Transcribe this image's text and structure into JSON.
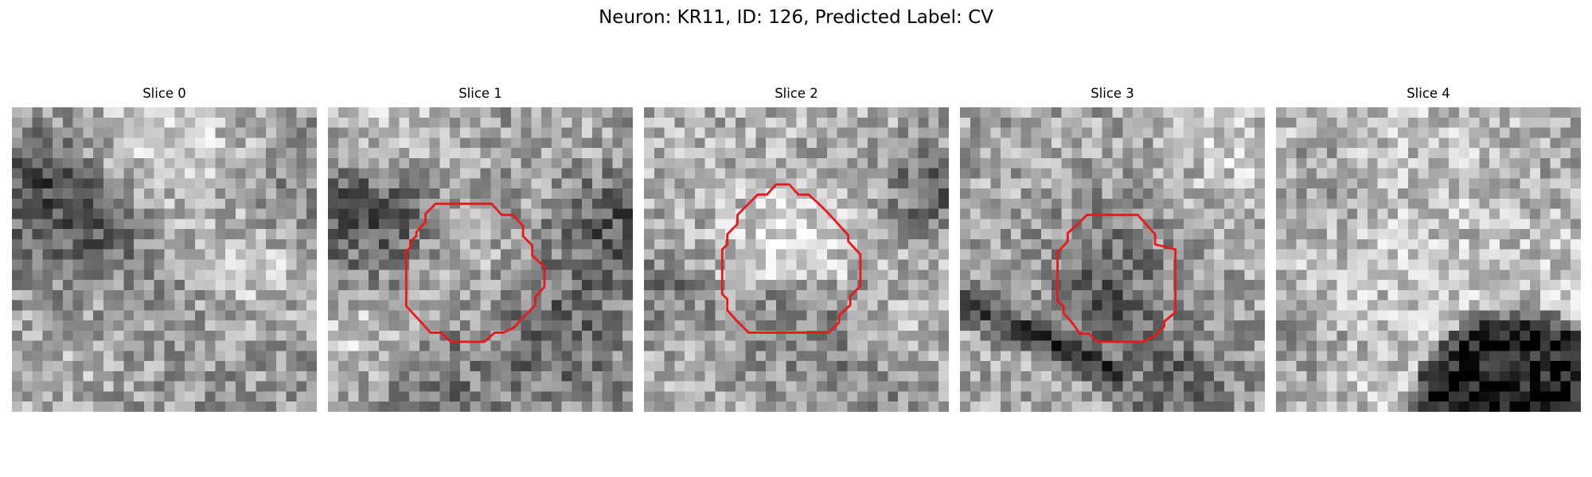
{
  "figure": {
    "title": "Neuron: KR11, ID: 126, Predicted Label: CV"
  },
  "panels": [
    {
      "title": "Slice 0",
      "has_contour": false
    },
    {
      "title": "Slice 1",
      "has_contour": true
    },
    {
      "title": "Slice 2",
      "has_contour": true
    },
    {
      "title": "Slice 3",
      "has_contour": true
    },
    {
      "title": "Slice 4",
      "has_contour": false
    }
  ],
  "colors": {
    "contour": "#e8191a",
    "colormap": "gray"
  }
}
